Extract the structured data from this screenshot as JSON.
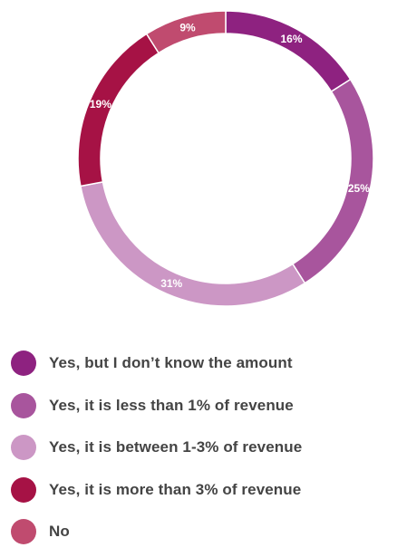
{
  "chart_data": {
    "type": "pie",
    "style": "donut",
    "legend_position": "bottom",
    "categories": [
      "Yes, but I don’t know the amount",
      "Yes, it is less than 1% of revenue",
      "Yes, it is between 1-3% of revenue",
      "Yes, it is more than 3% of revenue",
      "No"
    ],
    "values": [
      16,
      25,
      31,
      19,
      9
    ],
    "labels": [
      "16%",
      "25%",
      "31%",
      "19%",
      "9%"
    ],
    "colors": [
      "#8e2280",
      "#a8559d",
      "#cc97c5",
      "#a61245",
      "#c04b6f"
    ]
  }
}
